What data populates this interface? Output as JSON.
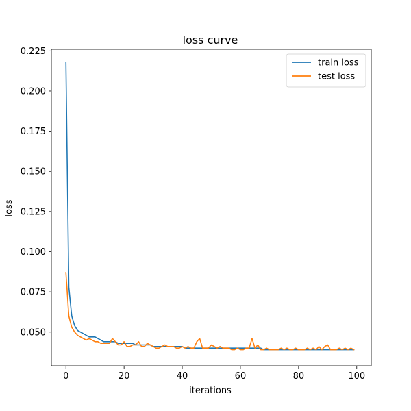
{
  "chart_data": {
    "type": "line",
    "title": "loss curve",
    "xlabel": "iterations",
    "ylabel": "loss",
    "xlim": [
      -5,
      105
    ],
    "ylim": [
      0.029,
      0.226
    ],
    "xticks": [
      0,
      20,
      40,
      60,
      80,
      100
    ],
    "yticks": [
      0.05,
      0.075,
      0.1,
      0.125,
      0.15,
      0.175,
      0.2,
      0.225
    ],
    "ytick_labels": [
      "0.050",
      "0.075",
      "0.100",
      "0.125",
      "0.150",
      "0.175",
      "0.200",
      "0.225"
    ],
    "xtick_labels": [
      "0",
      "20",
      "40",
      "60",
      "80",
      "100"
    ],
    "grid": false,
    "legend_position": "top-right",
    "series": [
      {
        "name": "train loss",
        "color": "#1f77b4",
        "values": [
          0.218,
          0.078,
          0.06,
          0.054,
          0.051,
          0.05,
          0.049,
          0.048,
          0.047,
          0.047,
          0.047,
          0.046,
          0.045,
          0.044,
          0.044,
          0.044,
          0.044,
          0.044,
          0.043,
          0.043,
          0.043,
          0.043,
          0.043,
          0.043,
          0.042,
          0.042,
          0.042,
          0.042,
          0.042,
          0.042,
          0.041,
          0.041,
          0.041,
          0.041,
          0.041,
          0.041,
          0.041,
          0.041,
          0.041,
          0.041,
          0.041,
          0.04,
          0.04,
          0.04,
          0.04,
          0.04,
          0.04,
          0.04,
          0.04,
          0.04,
          0.04,
          0.04,
          0.04,
          0.04,
          0.04,
          0.04,
          0.04,
          0.04,
          0.04,
          0.04,
          0.04,
          0.04,
          0.04,
          0.04,
          0.04,
          0.04,
          0.04,
          0.04,
          0.039,
          0.039,
          0.039,
          0.039,
          0.039,
          0.039,
          0.039,
          0.039,
          0.039,
          0.039,
          0.039,
          0.039,
          0.039,
          0.039,
          0.039,
          0.039,
          0.039,
          0.039,
          0.039,
          0.039,
          0.039,
          0.039,
          0.039,
          0.039,
          0.039,
          0.039,
          0.039,
          0.039,
          0.039,
          0.039,
          0.039,
          0.039
        ]
      },
      {
        "name": "test loss",
        "color": "#ff7f0e",
        "values": [
          0.087,
          0.06,
          0.053,
          0.05,
          0.048,
          0.047,
          0.046,
          0.045,
          0.046,
          0.045,
          0.044,
          0.044,
          0.043,
          0.043,
          0.043,
          0.043,
          0.046,
          0.044,
          0.042,
          0.042,
          0.044,
          0.041,
          0.041,
          0.042,
          0.042,
          0.044,
          0.041,
          0.041,
          0.043,
          0.042,
          0.041,
          0.04,
          0.04,
          0.041,
          0.042,
          0.041,
          0.041,
          0.041,
          0.04,
          0.04,
          0.041,
          0.04,
          0.041,
          0.04,
          0.04,
          0.044,
          0.046,
          0.04,
          0.04,
          0.04,
          0.042,
          0.041,
          0.04,
          0.041,
          0.04,
          0.04,
          0.04,
          0.039,
          0.039,
          0.04,
          0.039,
          0.039,
          0.04,
          0.04,
          0.046,
          0.04,
          0.042,
          0.039,
          0.039,
          0.04,
          0.039,
          0.039,
          0.039,
          0.039,
          0.04,
          0.039,
          0.04,
          0.039,
          0.039,
          0.04,
          0.039,
          0.039,
          0.039,
          0.04,
          0.039,
          0.04,
          0.039,
          0.041,
          0.039,
          0.041,
          0.042,
          0.039,
          0.039,
          0.039,
          0.04,
          0.039,
          0.04,
          0.039,
          0.04,
          0.039
        ]
      }
    ]
  }
}
